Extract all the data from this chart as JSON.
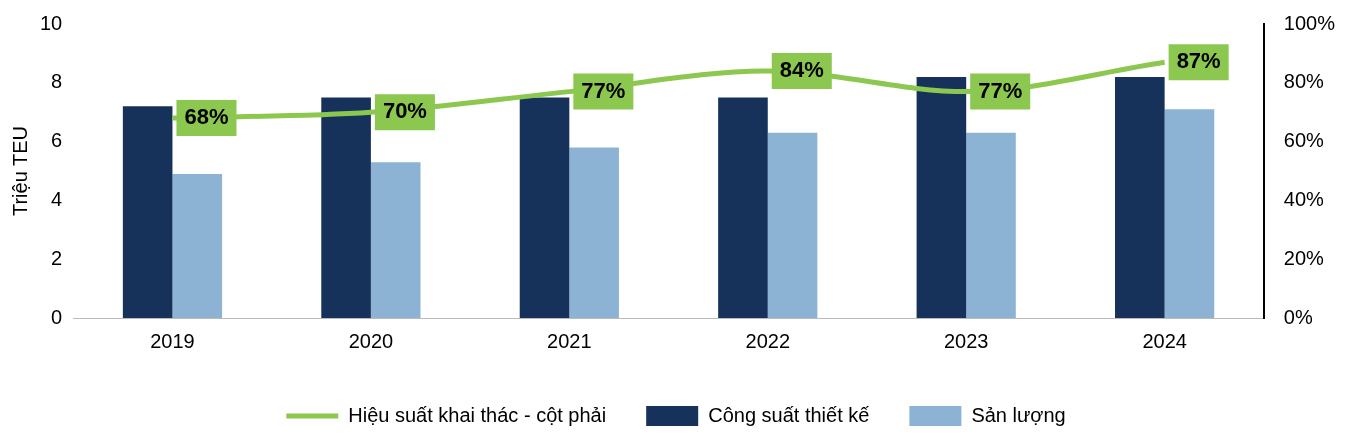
{
  "chart_data": {
    "type": "bar",
    "categories": [
      "2019",
      "2020",
      "2021",
      "2022",
      "2023",
      "2024"
    ],
    "series": [
      {
        "name": "Công suất thiết kế",
        "color": "#17325a",
        "values": [
          7.2,
          7.5,
          7.5,
          7.5,
          8.2,
          8.2
        ]
      },
      {
        "name": "Sản lượng",
        "color": "#8db3d4",
        "values": [
          4.9,
          5.3,
          5.8,
          6.3,
          6.3,
          7.1
        ]
      },
      {
        "name": "Hiệu suất khai thác - cột phải",
        "type": "line",
        "axis": "y2",
        "color": "#8cc850",
        "values": [
          68,
          70,
          77,
          84,
          77,
          87
        ],
        "value_labels": [
          "68%",
          "70%",
          "77%",
          "84%",
          "77%",
          "87%"
        ]
      }
    ],
    "ylabel": "Triệu TEU",
    "ylim": [
      0,
      10
    ],
    "yticks": [
      0,
      2,
      4,
      6,
      8,
      10
    ],
    "y2lim": [
      0,
      100
    ],
    "y2ticks": [
      {
        "value": 0,
        "label": "0%"
      },
      {
        "value": 20,
        "label": "20%"
      },
      {
        "value": 40,
        "label": "40%"
      },
      {
        "value": 60,
        "label": "60%"
      },
      {
        "value": 80,
        "label": "80%"
      },
      {
        "value": 100,
        "label": "100%"
      }
    ],
    "grid": false,
    "legend": "bottom",
    "marker": "none"
  }
}
